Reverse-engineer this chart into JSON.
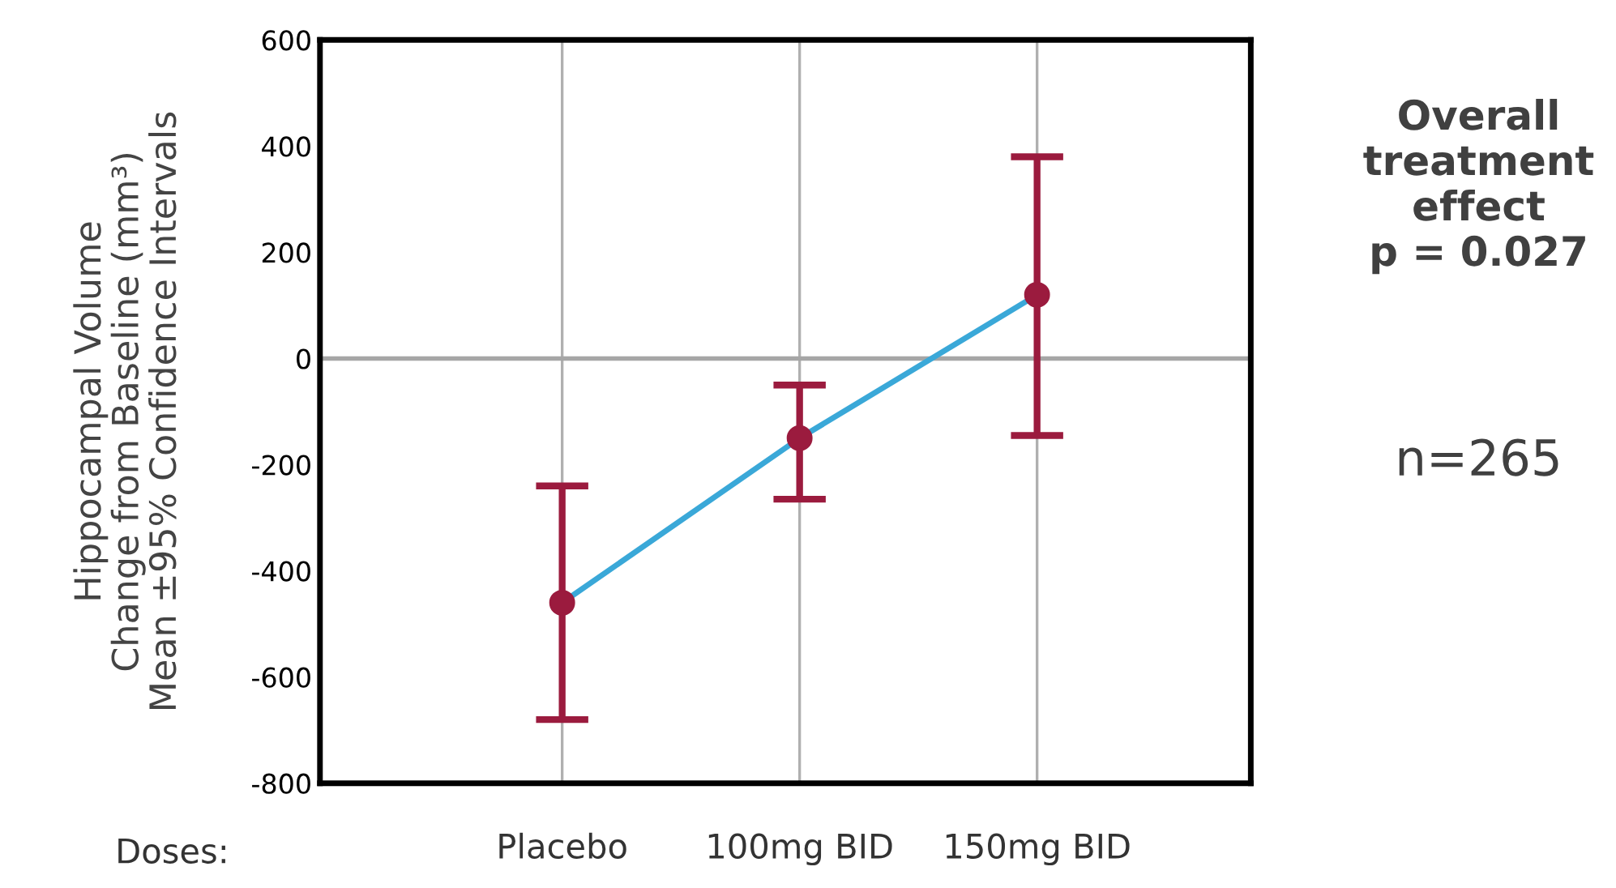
{
  "chart_data": {
    "type": "line",
    "xlabel": "Doses:",
    "ylabel": "Hippocampal Volume\nChange from Baseline (mm³)\nMean ±95% Confidence Intervals",
    "categories": [
      "Placebo",
      "100mg BID",
      "150mg BID"
    ],
    "series": [
      {
        "color": "#3aa8d8",
        "values": [
          -460,
          -150,
          120
        ]
      },
      {
        "type": "scatter",
        "color": "#9b1b3e",
        "values": [
          -460,
          -150,
          120
        ],
        "errors": [
          [
            -680,
            -240
          ],
          [
            -265,
            -50
          ],
          [
            -145,
            380
          ]
        ],
        "marker": "circle"
      }
    ],
    "ylim": [
      -800,
      600
    ],
    "yticks": [
      -800,
      -600,
      -400,
      -200,
      0,
      200,
      400,
      600
    ],
    "grid": "x",
    "ref_lines": [
      {
        "axis": "y",
        "value": 0,
        "color": "#a6a6a6"
      }
    ],
    "annotations": [
      "Overall\ntreatment\neffect\np = 0.027",
      "n=265"
    ]
  }
}
